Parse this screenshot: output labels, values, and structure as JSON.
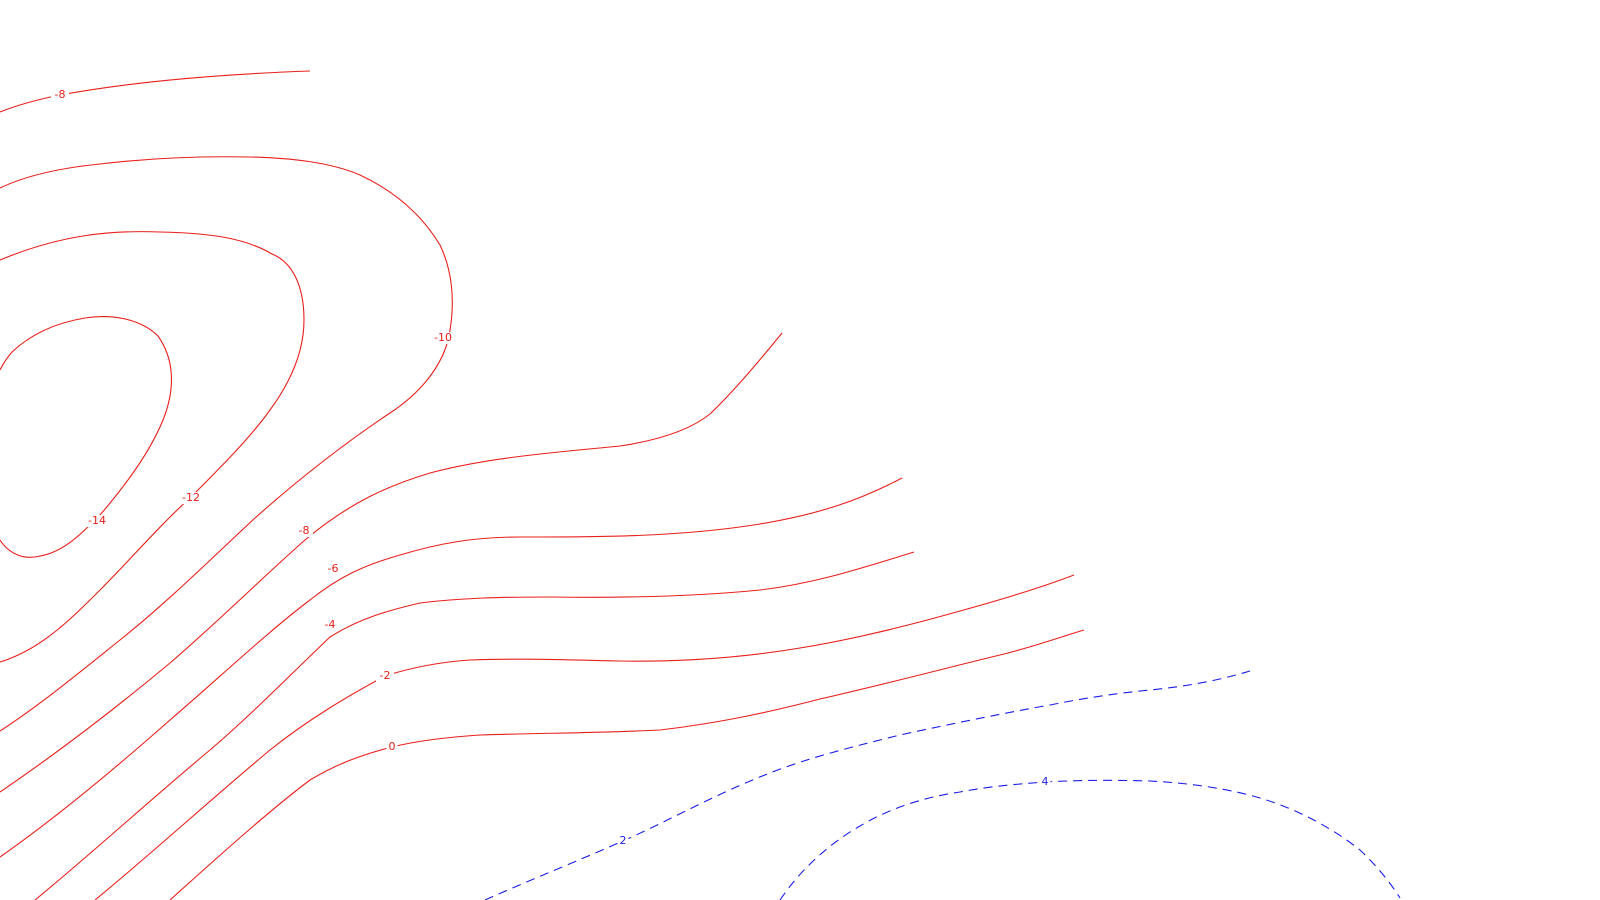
{
  "chart_data": {
    "type": "contour",
    "title": "",
    "xlabel": "",
    "ylabel": "",
    "grid": false,
    "legend": "none",
    "colors": {
      "negative": "#e8201c",
      "positive": "#1c1ce8"
    },
    "line_styles": {
      "negative": "solid",
      "positive": "dashed"
    },
    "contours": [
      {
        "level": -14,
        "label": "-14"
      },
      {
        "level": -12,
        "label": "-12"
      },
      {
        "level": -10,
        "label": "-10"
      },
      {
        "level": -8,
        "label": "-8"
      },
      {
        "level": -8,
        "label": "-8"
      },
      {
        "level": -6,
        "label": "-6"
      },
      {
        "level": -4,
        "label": "-4"
      },
      {
        "level": -2,
        "label": "-2"
      },
      {
        "level": 0,
        "label": "0"
      },
      {
        "level": 2,
        "label": "2"
      },
      {
        "level": 4,
        "label": "4"
      }
    ]
  }
}
